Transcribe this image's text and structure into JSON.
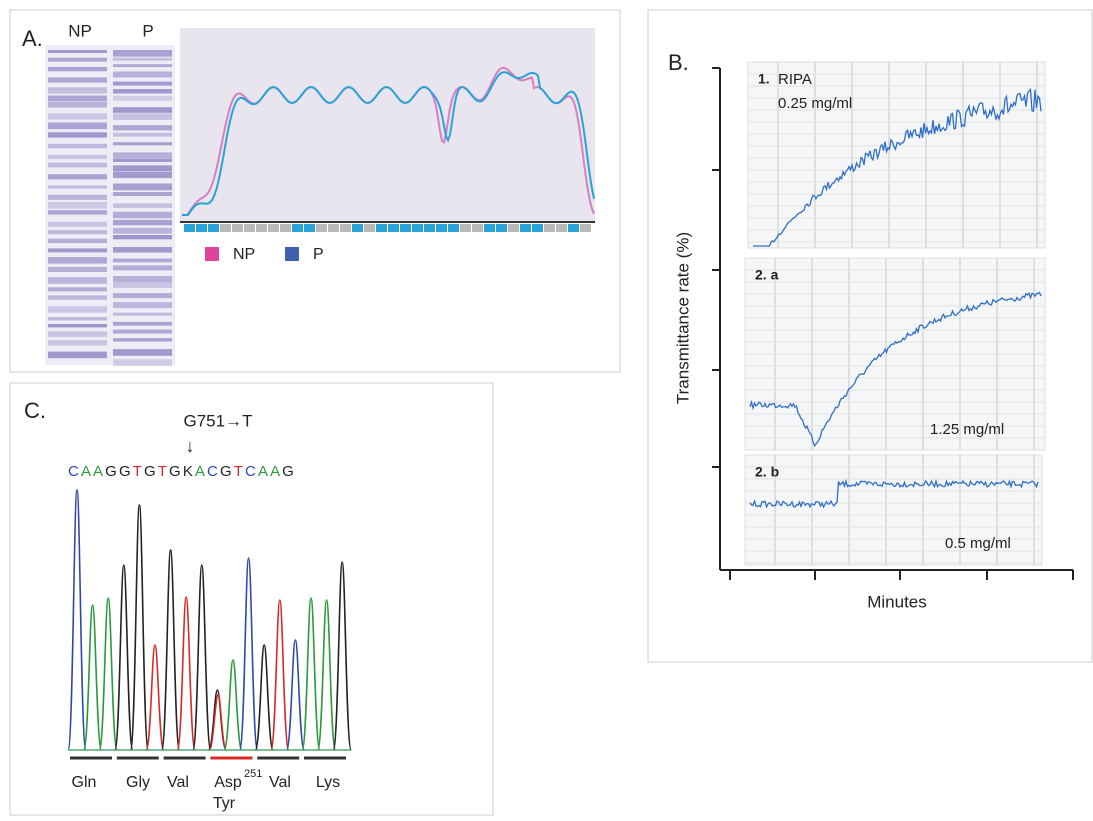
{
  "panel_a": {
    "label": "A.",
    "lanes": [
      "NP",
      "P"
    ],
    "legend": [
      {
        "name": "NP",
        "color": "#e0449a"
      },
      {
        "name": "P",
        "color": "#3f5fb0"
      }
    ]
  },
  "panel_b": {
    "label": "B.",
    "y_axis_label": "Transmittance rate (%)",
    "x_axis_label": "Minutes",
    "traces": [
      {
        "label": "1.",
        "sublabel": "RIPA",
        "concentration": "0.25 mg/ml"
      },
      {
        "label": "2. a",
        "concentration": "1.25  mg/ml"
      },
      {
        "label": "2. b",
        "concentration": "0.5 mg/ml"
      }
    ]
  },
  "panel_c": {
    "label": "C.",
    "mutation": "G751→T",
    "arrow": "↓",
    "sequence": "CAAGGTGTGKACGTCAAG",
    "base_colors": {
      "A": "#2a9a3a",
      "C": "#2f48b0",
      "G": "#222222",
      "T": "#d62a2a",
      "K": "#222222"
    },
    "codons": [
      "Gln",
      "Gly",
      "Val",
      "Asp",
      "Val",
      "Lys"
    ],
    "superscript": "251",
    "substitution": "Tyr",
    "substitution_color": "#d62a2a"
  }
}
